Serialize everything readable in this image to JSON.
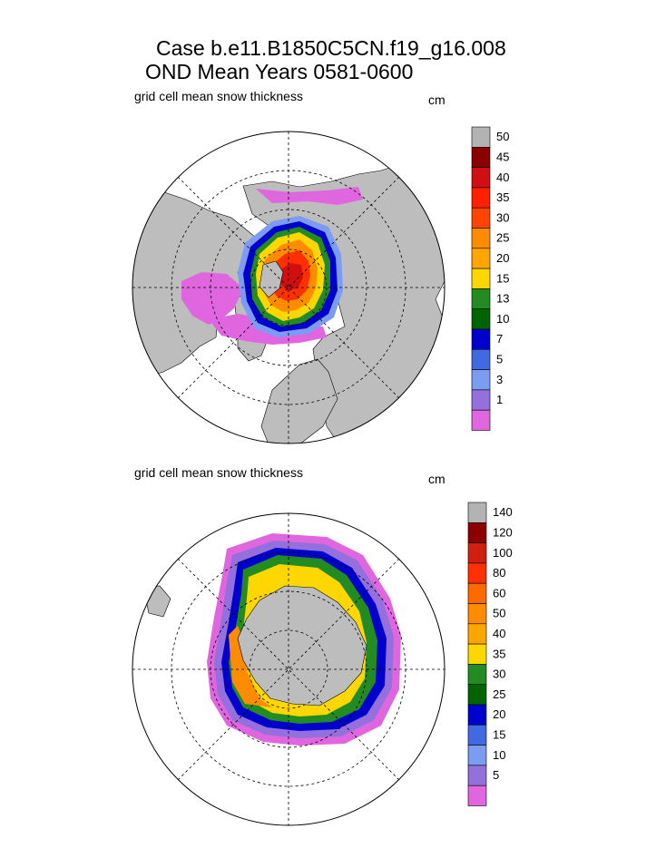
{
  "header": {
    "line1": "Case b.e11.B1850C5CN.f19_g16.008",
    "line2": "OND Mean   Years 0581-0600"
  },
  "colors": {
    "land": "#bdbdbd",
    "missing": "#b3b3b3",
    "ocean": "#ffffff"
  },
  "chart_data": [
    {
      "type": "heatmap",
      "projection": "north polar stereographic",
      "title": "grid cell mean snow thickness",
      "units": "cm",
      "levels": [
        "1",
        "3",
        "5",
        "7",
        "10",
        "13",
        "15",
        "20",
        "25",
        "30",
        "35",
        "40",
        "45",
        "50"
      ],
      "colors": [
        "#e066e0",
        "#9370db",
        "#7b9cf0",
        "#4169e1",
        "#0000cd",
        "#006400",
        "#228b22",
        "#ffd700",
        "#ffa500",
        "#ff8c00",
        "#ff4500",
        "#ff2000",
        "#d01010",
        "#8b0000",
        "#b3b3b3"
      ]
    },
    {
      "type": "heatmap",
      "projection": "south polar stereographic",
      "title": "grid cell mean snow thickness",
      "units": "cm",
      "levels": [
        "5",
        "10",
        "15",
        "20",
        "25",
        "30",
        "35",
        "40",
        "50",
        "60",
        "80",
        "100",
        "120",
        "140"
      ],
      "colors": [
        "#e066e0",
        "#9370db",
        "#7b9cf0",
        "#4169e1",
        "#0000cd",
        "#006400",
        "#228b22",
        "#ffd700",
        "#ffa500",
        "#ff8c00",
        "#ff6a00",
        "#ff3000",
        "#d02010",
        "#8b0000",
        "#b3b3b3"
      ]
    }
  ]
}
